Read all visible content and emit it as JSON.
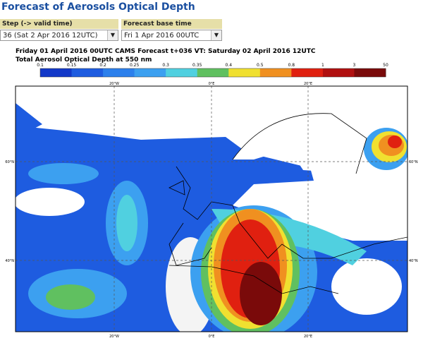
{
  "header": {
    "title": "Forecast of Aerosols Optical Depth"
  },
  "controls": {
    "step": {
      "label": "Step (-> valid time)",
      "value": "36 (Sat 2 Apr 2016 12UTC)"
    },
    "base_time": {
      "label": "Forecast base time",
      "value": "Fri 1 Apr 2016 00UTC"
    }
  },
  "map": {
    "title": "Friday 01 April 2016 00UTC CAMS Forecast t+036 VT: Saturday 02 April 2016 12UTC",
    "subtitle": "Total Aerosol Optical Depth at 550 nm",
    "lon_labels": [
      "20°W",
      "0°E",
      "20°E"
    ],
    "lat_labels": [
      "60°N",
      "40°N"
    ]
  },
  "colorbar": {
    "labels": [
      "0.1",
      "0.15",
      "0.2",
      "0.25",
      "0.3",
      "0.35",
      "0.4",
      "0.5",
      "0.8",
      "1",
      "3",
      "50"
    ],
    "colors": [
      "#1238c8",
      "#1e5ce0",
      "#2c80ec",
      "#3ca0f0",
      "#50d0e0",
      "#60c060",
      "#f0e030",
      "#f09020",
      "#e02010",
      "#b01010",
      "#7a0a0a"
    ]
  }
}
